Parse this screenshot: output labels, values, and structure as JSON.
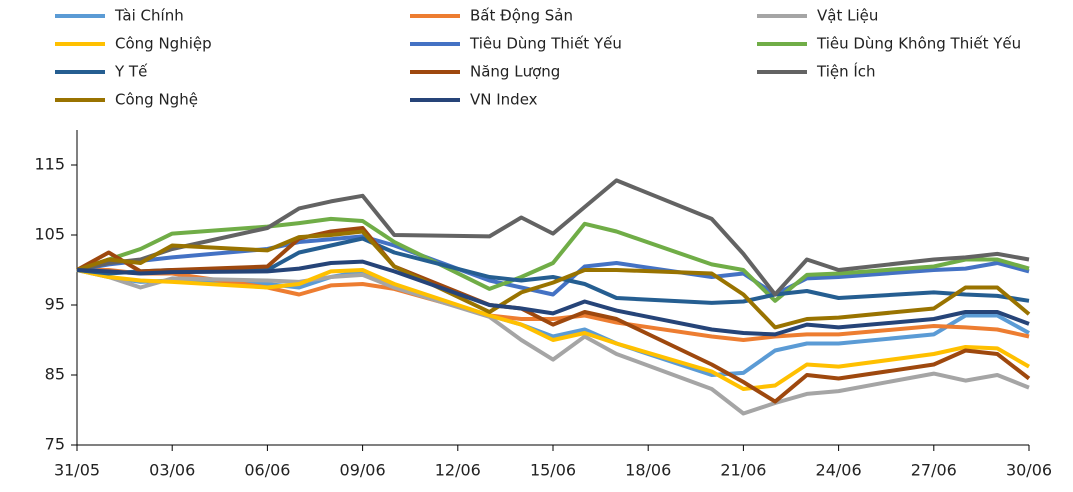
{
  "chart_data": {
    "type": "line",
    "x": [
      "31/05",
      "01/06",
      "02/06",
      "03/06",
      "06/06",
      "07/06",
      "08/06",
      "09/06",
      "10/06",
      "13/06",
      "14/06",
      "15/06",
      "16/06",
      "17/06",
      "20/06",
      "21/06",
      "22/06",
      "23/06",
      "24/06",
      "27/06",
      "28/06",
      "29/06",
      "30/06"
    ],
    "xticks": [
      "31/05",
      "03/06",
      "06/06",
      "09/06",
      "12/06",
      "15/06",
      "18/06",
      "21/06",
      "24/06",
      "27/06",
      "30/06"
    ],
    "ylim": [
      75,
      120
    ],
    "yticks": [
      75,
      85,
      95,
      105,
      115
    ],
    "series": [
      {
        "name": "Tài Chính",
        "color": "#5b9bd5",
        "values": [
          100,
          99,
          98.3,
          98.5,
          98,
          97.5,
          99,
          99.8,
          97.8,
          93.5,
          92.2,
          90.5,
          91.5,
          89.5,
          85,
          85.3,
          88.5,
          89.5,
          89.5,
          90.8,
          93.5,
          93.5,
          91
        ]
      },
      {
        "name": "Bất Động Sản",
        "color": "#ed7d31",
        "values": [
          100,
          100,
          99.5,
          99.5,
          97.5,
          96.5,
          97.8,
          98,
          97.3,
          93.5,
          93,
          93,
          93.5,
          92.5,
          90.5,
          90,
          90.5,
          90.8,
          90.8,
          92,
          91.8,
          91.5,
          90.5
        ]
      },
      {
        "name": "Vật Liệu",
        "color": "#a5a5a5",
        "values": [
          100,
          99,
          97.5,
          98.8,
          98.5,
          98.3,
          99,
          99.3,
          97.5,
          93.3,
          90,
          87.2,
          90.5,
          88,
          83,
          79.5,
          81,
          82.3,
          82.7,
          85.2,
          84.2,
          85,
          83.2
        ]
      },
      {
        "name": "Công Nghiệp",
        "color": "#ffc000",
        "values": [
          100,
          99,
          98.5,
          98.3,
          97.5,
          98,
          99.8,
          100,
          98,
          93.5,
          92.2,
          90,
          91,
          89.5,
          85.5,
          83,
          83.5,
          86.5,
          86.2,
          88,
          89,
          88.8,
          86.2
        ]
      },
      {
        "name": "Tiêu Dùng Thiết Yếu",
        "color": "#4472c4",
        "values": [
          100,
          100.8,
          101.3,
          101.8,
          103,
          104,
          104.4,
          104.8,
          103.5,
          98.5,
          97.5,
          96.5,
          100.5,
          101,
          99,
          99.5,
          96.5,
          98.8,
          99,
          100,
          100.2,
          101,
          99.8
        ]
      },
      {
        "name": "Tiêu Dùng Không Thiết Yếu",
        "color": "#70ad47",
        "values": [
          100,
          101.5,
          103,
          105.2,
          106.2,
          106.7,
          107.3,
          107,
          104,
          97.3,
          99,
          101,
          106.6,
          105.5,
          100.8,
          100,
          95.6,
          99.3,
          99.5,
          100.5,
          101.5,
          101.5,
          100.2
        ]
      },
      {
        "name": "Y Tế",
        "color": "#255e91",
        "values": [
          100,
          99.5,
          99.8,
          100,
          100,
          102.5,
          103.5,
          104.5,
          102.5,
          99,
          98.5,
          99,
          98,
          96,
          95.3,
          95.5,
          96.5,
          97,
          96,
          96.8,
          96.5,
          96.3,
          95.6
        ]
      },
      {
        "name": "Năng Lượng",
        "color": "#9e480e",
        "values": [
          100,
          102.5,
          99.8,
          100,
          100.5,
          104.5,
          105.5,
          106,
          100.5,
          95,
          94.5,
          92.2,
          94,
          93,
          86.5,
          84,
          81.2,
          85,
          84.5,
          86.5,
          88.5,
          88,
          84.5
        ]
      },
      {
        "name": "Tiện Ích",
        "color": "#636363",
        "values": [
          100,
          101,
          101.5,
          103,
          106,
          108.8,
          109.8,
          110.6,
          105,
          104.8,
          107.5,
          105.2,
          109,
          112.8,
          107.3,
          102.3,
          96.5,
          101.5,
          100,
          101.5,
          101.8,
          102.3,
          101.5
        ]
      },
      {
        "name": "Công Nghệ",
        "color": "#997300",
        "values": [
          100,
          101.5,
          101,
          103.5,
          102.8,
          104.7,
          105,
          105.5,
          100.5,
          94,
          96.8,
          98.2,
          100,
          100,
          99.5,
          96.5,
          91.8,
          93,
          93.2,
          94.5,
          97.5,
          97.5,
          93.7
        ]
      },
      {
        "name": "VN Index",
        "color": "#264478",
        "values": [
          100,
          99.8,
          99.5,
          99.7,
          99.8,
          100.2,
          101,
          101.2,
          99.8,
          95,
          94.5,
          93.8,
          95.5,
          94.2,
          91.5,
          91,
          90.8,
          92.2,
          91.8,
          93,
          94,
          94,
          92.3
        ]
      }
    ]
  }
}
